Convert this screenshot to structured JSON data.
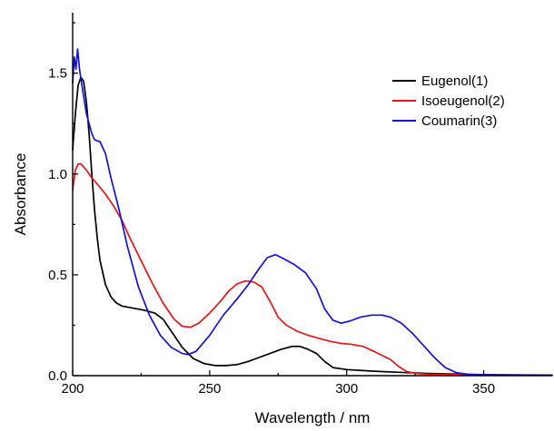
{
  "chart_data": {
    "type": "line",
    "title": "",
    "xlabel": "Wavelength / nm",
    "ylabel": "Absorbance",
    "xlim": [
      200,
      375
    ],
    "ylim": [
      0,
      1.8
    ],
    "x_ticks": [
      "200",
      "250",
      "300",
      "350"
    ],
    "y_ticks": [
      "0.0",
      "0.5",
      "1.0",
      "1.5"
    ],
    "legend_position": "top-right",
    "grid": false,
    "series": [
      {
        "name": "Eugenol(1)",
        "color": "#000000",
        "points": [
          [
            200,
            1.12
          ],
          [
            201,
            1.3
          ],
          [
            202,
            1.44
          ],
          [
            203,
            1.48
          ],
          [
            204,
            1.46
          ],
          [
            205,
            1.36
          ],
          [
            206,
            1.2
          ],
          [
            207,
            1.0
          ],
          [
            208,
            0.82
          ],
          [
            209,
            0.68
          ],
          [
            210,
            0.57
          ],
          [
            212,
            0.45
          ],
          [
            214,
            0.39
          ],
          [
            216,
            0.36
          ],
          [
            218,
            0.345
          ],
          [
            222,
            0.335
          ],
          [
            226,
            0.325
          ],
          [
            230,
            0.31
          ],
          [
            233,
            0.28
          ],
          [
            236,
            0.22
          ],
          [
            240,
            0.14
          ],
          [
            244,
            0.085
          ],
          [
            248,
            0.06
          ],
          [
            252,
            0.05
          ],
          [
            256,
            0.05
          ],
          [
            260,
            0.055
          ],
          [
            264,
            0.07
          ],
          [
            268,
            0.09
          ],
          [
            272,
            0.11
          ],
          [
            276,
            0.13
          ],
          [
            280,
            0.145
          ],
          [
            283,
            0.145
          ],
          [
            286,
            0.13
          ],
          [
            289,
            0.11
          ],
          [
            292,
            0.07
          ],
          [
            295,
            0.04
          ],
          [
            300,
            0.03
          ],
          [
            310,
            0.022
          ],
          [
            320,
            0.016
          ],
          [
            330,
            0.011
          ],
          [
            340,
            0.008
          ],
          [
            350,
            0.005
          ],
          [
            360,
            0.004
          ],
          [
            375,
            0.003
          ]
        ]
      },
      {
        "name": "Isoeugenol(2)",
        "color": "#ee1111",
        "points": [
          [
            200,
            0.92
          ],
          [
            201,
            1.02
          ],
          [
            202,
            1.05
          ],
          [
            203,
            1.05
          ],
          [
            205,
            1.02
          ],
          [
            207,
            0.98
          ],
          [
            209,
            0.95
          ],
          [
            212,
            0.9
          ],
          [
            215,
            0.84
          ],
          [
            218,
            0.77
          ],
          [
            221,
            0.68
          ],
          [
            225,
            0.57
          ],
          [
            229,
            0.46
          ],
          [
            233,
            0.36
          ],
          [
            237,
            0.28
          ],
          [
            240,
            0.245
          ],
          [
            243,
            0.24
          ],
          [
            246,
            0.26
          ],
          [
            250,
            0.31
          ],
          [
            254,
            0.37
          ],
          [
            257,
            0.42
          ],
          [
            260,
            0.455
          ],
          [
            263,
            0.47
          ],
          [
            266,
            0.465
          ],
          [
            269,
            0.44
          ],
          [
            272,
            0.37
          ],
          [
            275,
            0.29
          ],
          [
            278,
            0.25
          ],
          [
            282,
            0.22
          ],
          [
            286,
            0.2
          ],
          [
            290,
            0.185
          ],
          [
            294,
            0.17
          ],
          [
            298,
            0.16
          ],
          [
            302,
            0.155
          ],
          [
            306,
            0.145
          ],
          [
            310,
            0.12
          ],
          [
            313,
            0.1
          ],
          [
            316,
            0.08
          ],
          [
            319,
            0.045
          ],
          [
            322,
            0.02
          ],
          [
            326,
            0.01
          ],
          [
            330,
            0.007
          ],
          [
            340,
            0.005
          ],
          [
            350,
            0.004
          ],
          [
            360,
            0.003
          ],
          [
            375,
            0.002
          ]
        ]
      },
      {
        "name": "Coumarin(3)",
        "color": "#1111dd",
        "points": [
          [
            200,
            1.45
          ],
          [
            200.6,
            1.58
          ],
          [
            201.2,
            1.52
          ],
          [
            201.8,
            1.62
          ],
          [
            202.5,
            1.52
          ],
          [
            203.5,
            1.43
          ],
          [
            205,
            1.3
          ],
          [
            207,
            1.2
          ],
          [
            208,
            1.17
          ],
          [
            210,
            1.16
          ],
          [
            212,
            1.1
          ],
          [
            214,
            0.98
          ],
          [
            217,
            0.82
          ],
          [
            220,
            0.64
          ],
          [
            224,
            0.44
          ],
          [
            228,
            0.3
          ],
          [
            232,
            0.2
          ],
          [
            236,
            0.14
          ],
          [
            240,
            0.11
          ],
          [
            242,
            0.105
          ],
          [
            245,
            0.12
          ],
          [
            250,
            0.2
          ],
          [
            255,
            0.3
          ],
          [
            260,
            0.38
          ],
          [
            264,
            0.45
          ],
          [
            268,
            0.53
          ],
          [
            271,
            0.585
          ],
          [
            274,
            0.6
          ],
          [
            277,
            0.58
          ],
          [
            281,
            0.55
          ],
          [
            285,
            0.51
          ],
          [
            289,
            0.43
          ],
          [
            292,
            0.33
          ],
          [
            295,
            0.275
          ],
          [
            298,
            0.26
          ],
          [
            301,
            0.27
          ],
          [
            305,
            0.29
          ],
          [
            309,
            0.3
          ],
          [
            313,
            0.3
          ],
          [
            316,
            0.29
          ],
          [
            320,
            0.26
          ],
          [
            324,
            0.21
          ],
          [
            328,
            0.15
          ],
          [
            332,
            0.09
          ],
          [
            336,
            0.04
          ],
          [
            340,
            0.015
          ],
          [
            345,
            0.005
          ],
          [
            355,
            0.003
          ],
          [
            375,
            0.002
          ]
        ]
      }
    ]
  }
}
